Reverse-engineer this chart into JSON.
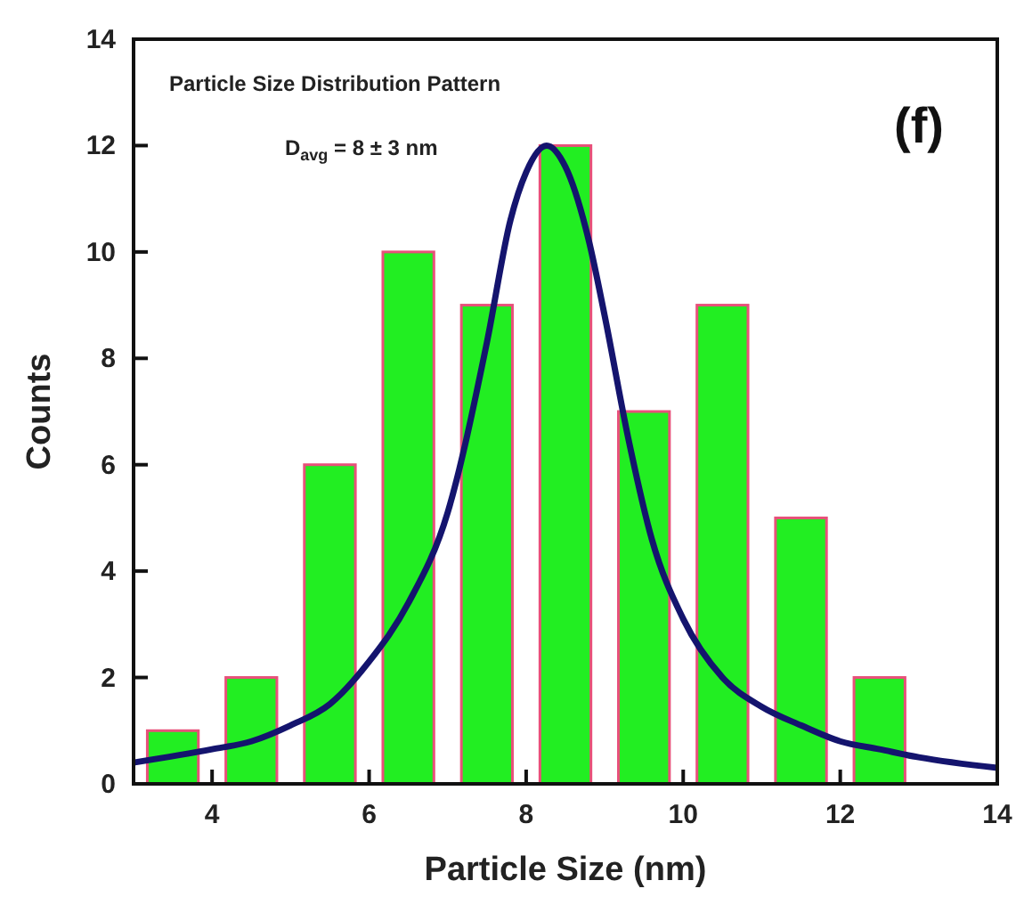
{
  "chart_data": {
    "type": "bar",
    "title": "Particle Size Distribution Pattern",
    "xlabel": "Particle  Size (nm)",
    "ylabel": "Counts",
    "x": [
      3.5,
      4.5,
      5.5,
      6.5,
      7.5,
      8.5,
      9.5,
      10.5,
      11.5,
      12.5
    ],
    "series": [
      {
        "color": "#22ee22",
        "values": [
          1,
          2,
          6,
          10,
          9,
          12,
          7,
          9,
          5,
          2
        ]
      },
      {
        "type": "line",
        "color": "#14146e",
        "x": [
          3,
          4,
          4.5,
          5,
          5.5,
          6,
          6.5,
          7,
          7.5,
          7.8,
          8,
          8.26,
          8.5,
          8.8,
          9,
          9.3,
          9.6,
          10,
          10.5,
          11,
          11.5,
          12,
          12.5,
          13,
          14
        ],
        "values": [
          0.4,
          0.65,
          0.8,
          1.1,
          1.5,
          2.3,
          3.4,
          5.1,
          8.3,
          10.6,
          11.5,
          12,
          11.6,
          10.2,
          8.8,
          6.5,
          4.6,
          3.1,
          2.0,
          1.45,
          1.1,
          0.8,
          0.65,
          0.5,
          0.3
        ]
      }
    ],
    "annotations": [
      "D$_{avg}$ = 8 ± 3 nm",
      "(f)"
    ],
    "xlim": [
      3,
      14
    ],
    "xticks": [
      4,
      6,
      8,
      10,
      12,
      14
    ],
    "ylim": [
      0,
      14
    ],
    "yticks": [
      0,
      2,
      4,
      6,
      8,
      10,
      12,
      14
    ],
    "grid": false
  }
}
